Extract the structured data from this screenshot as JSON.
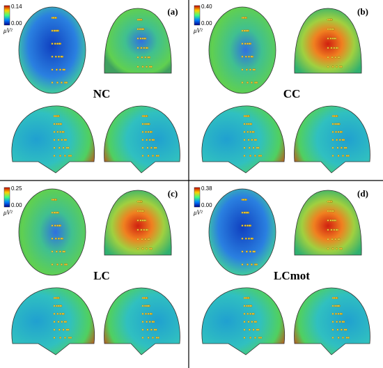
{
  "panels": [
    {
      "label": "(a)",
      "group": "NC",
      "scale": {
        "max": "0.14",
        "min": "0.00",
        "unit": "μV²"
      }
    },
    {
      "label": "(b)",
      "group": "CC",
      "scale": {
        "max": "0.40",
        "min": "0.00",
        "unit": "μV²"
      }
    },
    {
      "label": "(c)",
      "group": "LC",
      "scale": {
        "max": "0.25",
        "min": "0.00",
        "unit": "μV²"
      }
    },
    {
      "label": "(d)",
      "group": "LCmot",
      "scale": {
        "max": "0.38",
        "min": "0.00",
        "unit": "μV²"
      }
    }
  ]
}
